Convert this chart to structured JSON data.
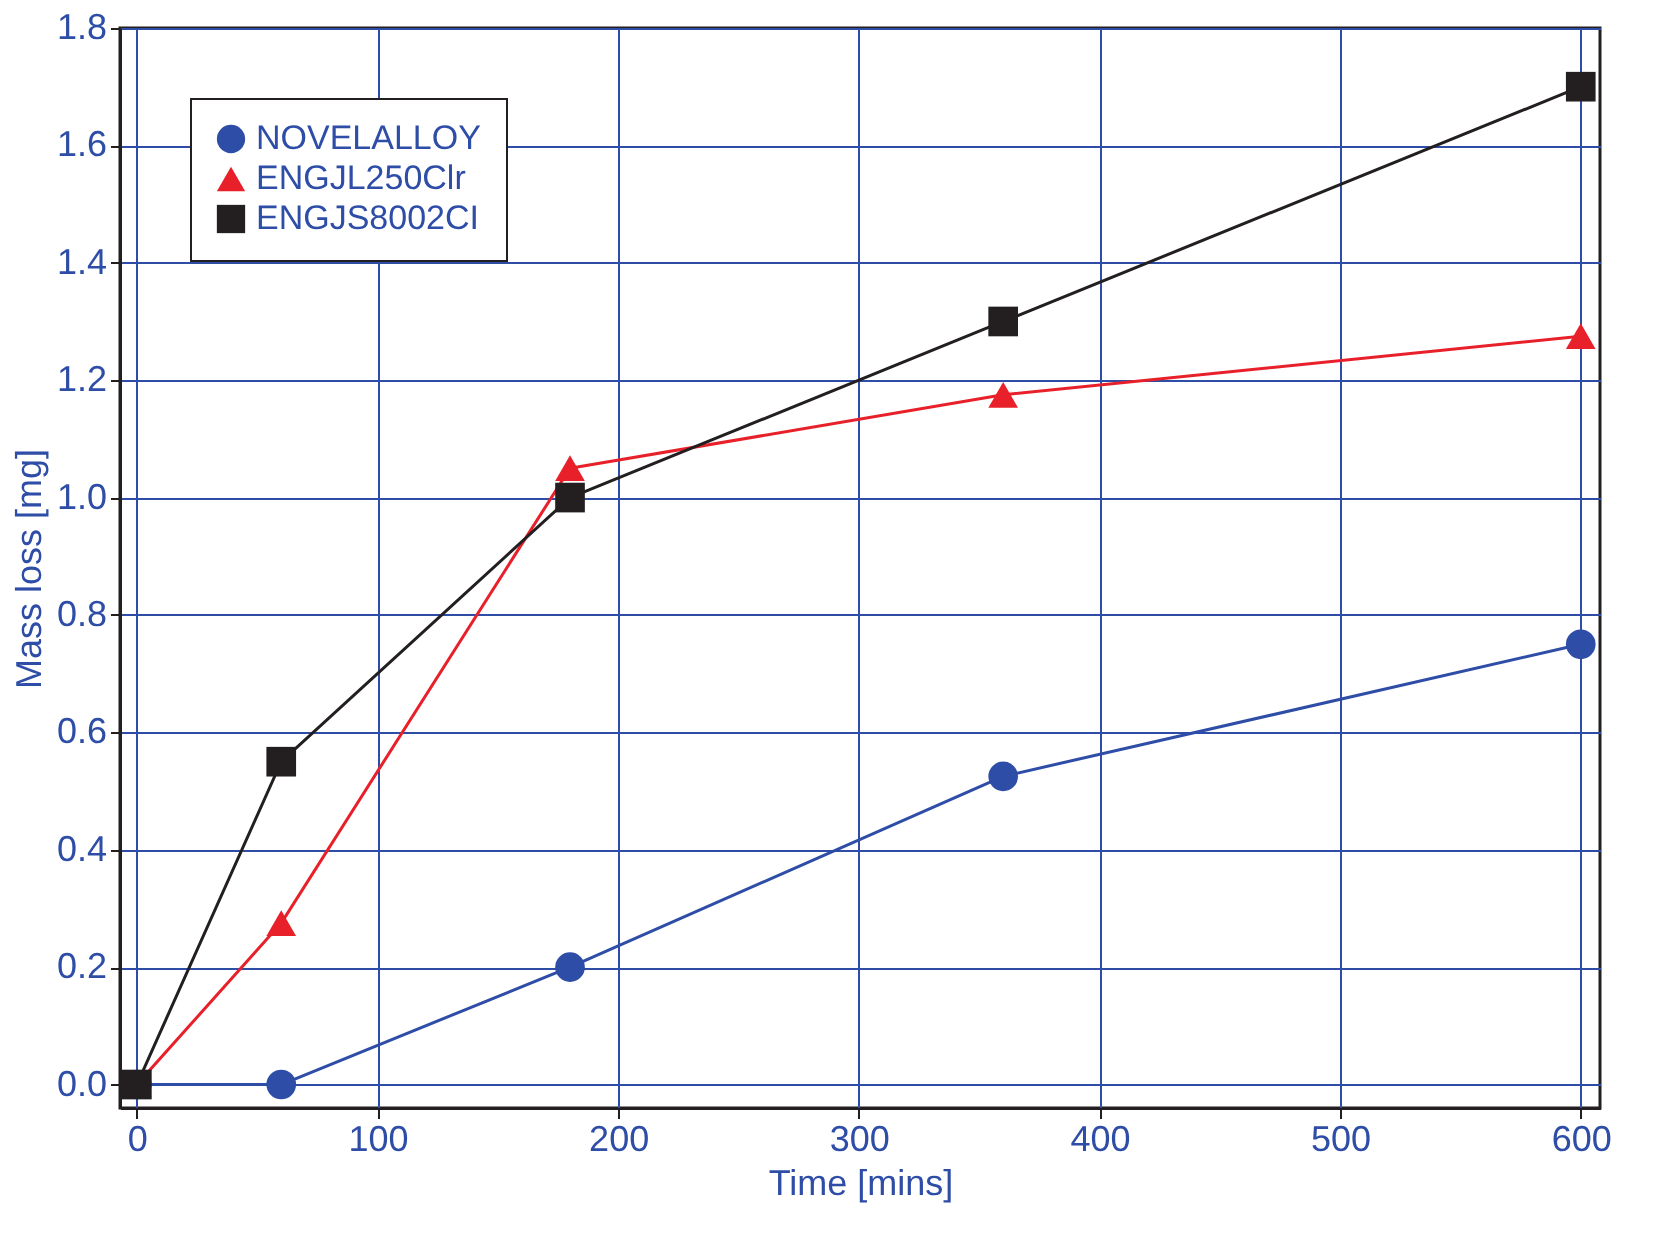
{
  "chart_data": {
    "type": "line",
    "xlabel": "Time [mins]",
    "ylabel": "Mass loss [mg]",
    "x": [
      0,
      60,
      180,
      360,
      600
    ],
    "series": [
      {
        "name": "NOVELALLOY",
        "color": "#2e4da7",
        "marker": "circle",
        "values": [
          0,
          0,
          0.2,
          0.525,
          0.75
        ]
      },
      {
        "name": "ENGJL250Clr",
        "color": "#e8202a",
        "marker": "triangle",
        "values": [
          0,
          0.275,
          1.05,
          1.175,
          1.275
        ]
      },
      {
        "name": "ENGJS8002CI",
        "color": "#231f20",
        "marker": "square",
        "values": [
          0,
          0.55,
          1.0,
          1.3,
          1.7
        ]
      }
    ],
    "xlim": [
      -7,
      608
    ],
    "xticks": [
      0,
      100,
      200,
      300,
      400,
      500,
      600
    ],
    "ylim": [
      -0.04,
      1.8
    ],
    "yticks": [
      {
        "value": 0,
        "label": "0.0"
      },
      {
        "value": 0.2,
        "label": "0.2"
      },
      {
        "value": 0.4,
        "label": "0.4"
      },
      {
        "value": 0.6,
        "label": "0.6"
      },
      {
        "value": 0.8,
        "label": "0.8"
      },
      {
        "value": 1.0,
        "label": "1.0"
      },
      {
        "value": 1.2,
        "label": "1.2"
      },
      {
        "value": 1.4,
        "label": "1.4"
      },
      {
        "value": 1.6,
        "label": "1.6"
      },
      {
        "value": 1.8,
        "label": "1.8"
      }
    ],
    "grid": true,
    "legend": "top left",
    "line_style": "solid"
  }
}
